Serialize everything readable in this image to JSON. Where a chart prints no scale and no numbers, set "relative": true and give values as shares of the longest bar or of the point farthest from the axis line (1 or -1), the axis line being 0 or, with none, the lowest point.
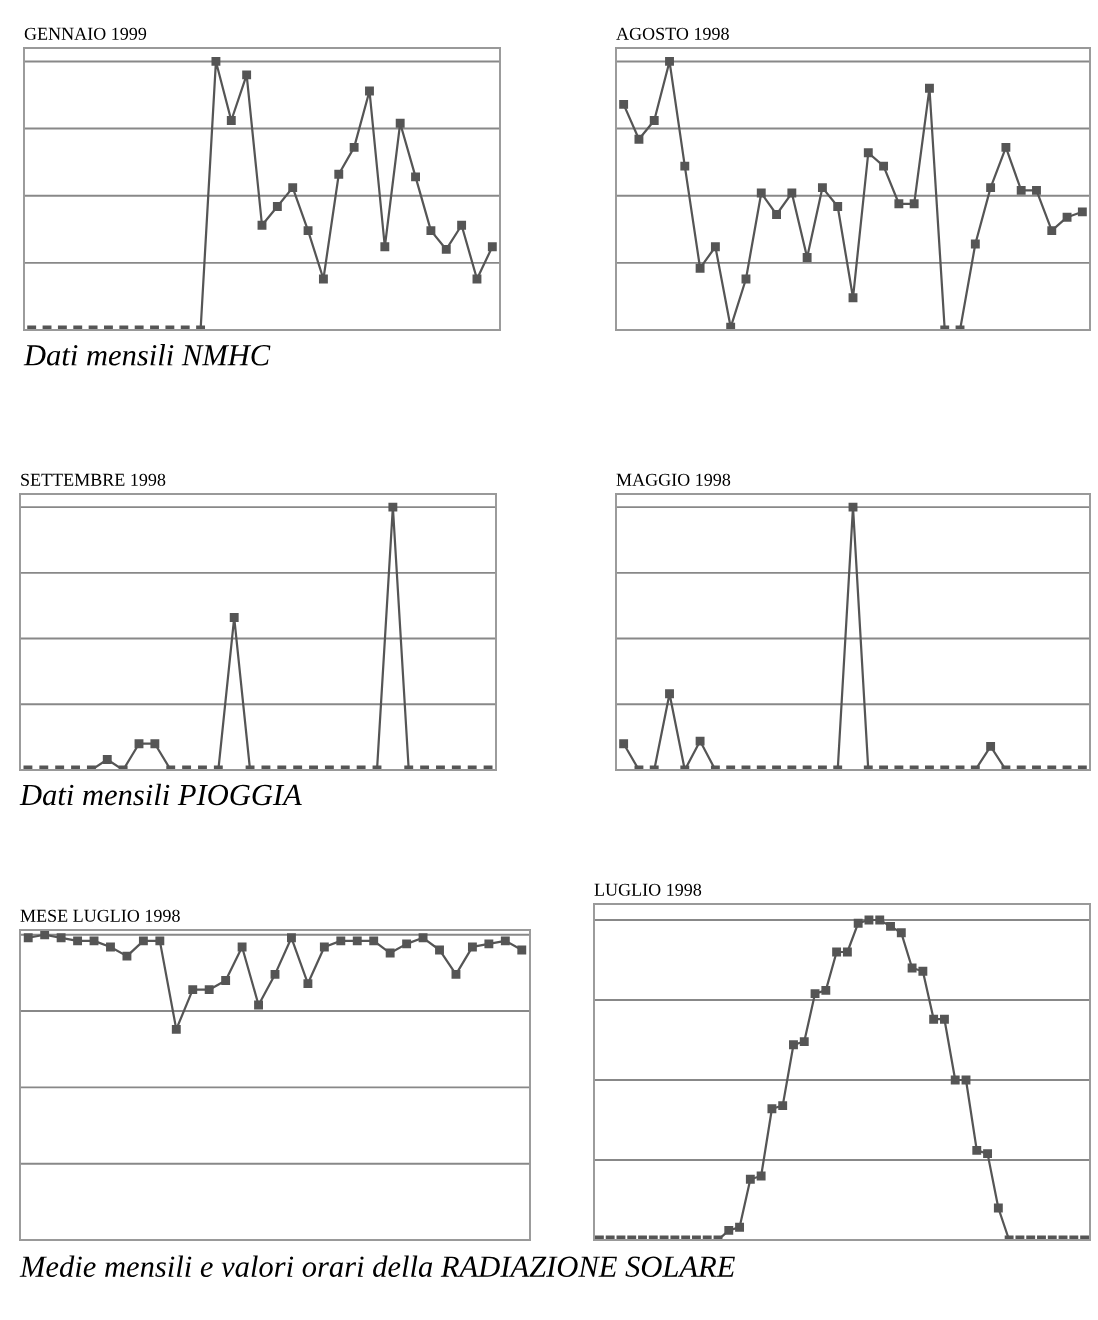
{
  "chart_data": [
    {
      "type": "line",
      "title": "GENNAIO 1999",
      "relative": true,
      "tick_labels": false,
      "grid": "y",
      "marker": "square",
      "line_style": "solid",
      "annotations": [
        "Dati mensili NMHC"
      ],
      "categories": [
        null,
        null,
        null,
        null,
        null,
        null,
        null,
        null,
        null,
        null,
        null,
        null,
        null,
        null,
        null,
        null,
        null,
        null,
        null,
        null,
        null,
        null,
        null,
        null,
        null,
        null,
        null,
        null,
        null,
        null,
        null
      ],
      "series": [
        {
          "color": "#555555",
          "values": [
            0,
            0,
            0,
            0,
            0,
            0,
            0,
            0,
            0,
            0,
            0,
            0,
            1,
            0.78,
            0.95,
            0.39,
            0.46,
            0.53,
            0.37,
            0.19,
            0.58,
            0.68,
            0.89,
            0.31,
            0.77,
            0.57,
            0.37,
            0.3,
            0.39,
            0.19,
            0.31
          ]
        }
      ]
    },
    {
      "type": "line",
      "title": "AGOSTO 1998",
      "relative": true,
      "tick_labels": false,
      "grid": "y",
      "marker": "square",
      "line_style": "solid",
      "categories": [
        null,
        null,
        null,
        null,
        null,
        null,
        null,
        null,
        null,
        null,
        null,
        null,
        null,
        null,
        null,
        null,
        null,
        null,
        null,
        null,
        null,
        null,
        null,
        null,
        null,
        null,
        null,
        null,
        null,
        null,
        null
      ],
      "series": [
        {
          "color": "#555555",
          "values": [
            0.84,
            0.71,
            0.78,
            1,
            0.61,
            0.23,
            0.31,
            0.01,
            0.19,
            0.51,
            0.43,
            0.51,
            0.27,
            0.53,
            0.46,
            0.12,
            0.66,
            0.61,
            0.47,
            0.47,
            0.9,
            0,
            0,
            0.32,
            0.53,
            0.68,
            0.52,
            0.52,
            0.37,
            0.42,
            0.44
          ]
        }
      ]
    },
    {
      "type": "line",
      "title": "SETTEMBRE 1998",
      "relative": true,
      "tick_labels": false,
      "grid": "y",
      "marker": "square",
      "line_style": "solid",
      "annotations": [
        "Dati mensili PIOGGIA"
      ],
      "categories": [
        null,
        null,
        null,
        null,
        null,
        null,
        null,
        null,
        null,
        null,
        null,
        null,
        null,
        null,
        null,
        null,
        null,
        null,
        null,
        null,
        null,
        null,
        null,
        null,
        null,
        null,
        null,
        null,
        null,
        null
      ],
      "series": [
        {
          "color": "#555555",
          "values": [
            0,
            0,
            0,
            0,
            0,
            0.04,
            0,
            0.1,
            0.1,
            0,
            0,
            0,
            0,
            0.58,
            0,
            0,
            0,
            0,
            0,
            0,
            0,
            0,
            0,
            1,
            0,
            0,
            0,
            0,
            0,
            0
          ]
        }
      ]
    },
    {
      "type": "line",
      "title": "MAGGIO 1998",
      "relative": true,
      "tick_labels": false,
      "grid": "y",
      "marker": "square",
      "line_style": "solid",
      "categories": [
        null,
        null,
        null,
        null,
        null,
        null,
        null,
        null,
        null,
        null,
        null,
        null,
        null,
        null,
        null,
        null,
        null,
        null,
        null,
        null,
        null,
        null,
        null,
        null,
        null,
        null,
        null,
        null,
        null,
        null,
        null
      ],
      "series": [
        {
          "color": "#555555",
          "values": [
            0.1,
            0,
            0,
            0.29,
            0,
            0.11,
            0,
            0,
            0,
            0,
            0,
            0,
            0,
            0,
            0,
            1,
            0,
            0,
            0,
            0,
            0,
            0,
            0,
            0,
            0.09,
            0,
            0,
            0,
            0,
            0,
            0
          ]
        }
      ]
    },
    {
      "type": "line",
      "title": "MESE LUGLIO 1998",
      "relative": true,
      "tick_labels": false,
      "grid": "y",
      "marker": "square",
      "line_style": "solid",
      "annotations": [
        "Medie mensili e valori orari della RADIAZIONE SOLARE"
      ],
      "categories": [
        null,
        null,
        null,
        null,
        null,
        null,
        null,
        null,
        null,
        null,
        null,
        null,
        null,
        null,
        null,
        null,
        null,
        null,
        null,
        null,
        null,
        null,
        null,
        null,
        null,
        null,
        null,
        null,
        null,
        null,
        null
      ],
      "series": [
        {
          "color": "#555555",
          "values": [
            0.99,
            1,
            0.99,
            0.98,
            0.98,
            0.96,
            0.93,
            0.98,
            0.98,
            0.69,
            0.82,
            0.82,
            0.85,
            0.96,
            0.77,
            0.87,
            0.99,
            0.84,
            0.96,
            0.98,
            0.98,
            0.98,
            0.94,
            0.97,
            0.99,
            0.95,
            0.87,
            0.96,
            0.97,
            0.98,
            0.95
          ]
        }
      ]
    },
    {
      "type": "line",
      "title": "LUGLIO 1998",
      "relative": true,
      "tick_labels": false,
      "grid": "y",
      "marker": "square",
      "line_style": "solid",
      "categories": [
        null,
        null,
        null,
        null,
        null,
        null,
        null,
        null,
        null,
        null,
        null,
        null,
        null,
        null,
        null,
        null,
        null,
        null,
        null,
        null,
        null,
        null,
        null,
        null,
        null,
        null,
        null,
        null,
        null,
        null,
        null,
        null,
        null,
        null,
        null,
        null,
        null,
        null,
        null,
        null,
        null,
        null,
        null,
        null,
        null,
        null
      ],
      "series": [
        {
          "color": "#555555",
          "values": [
            0,
            0,
            0,
            0,
            0,
            0,
            0,
            0,
            0,
            0,
            0,
            0,
            0.03,
            0.04,
            0.19,
            0.2,
            0.41,
            0.42,
            0.61,
            0.62,
            0.77,
            0.78,
            0.9,
            0.9,
            0.99,
            1,
            1,
            0.98,
            0.96,
            0.85,
            0.84,
            0.69,
            0.69,
            0.5,
            0.5,
            0.28,
            0.27,
            0.1,
            0,
            0,
            0,
            0,
            0,
            0,
            0,
            0
          ]
        }
      ]
    }
  ]
}
